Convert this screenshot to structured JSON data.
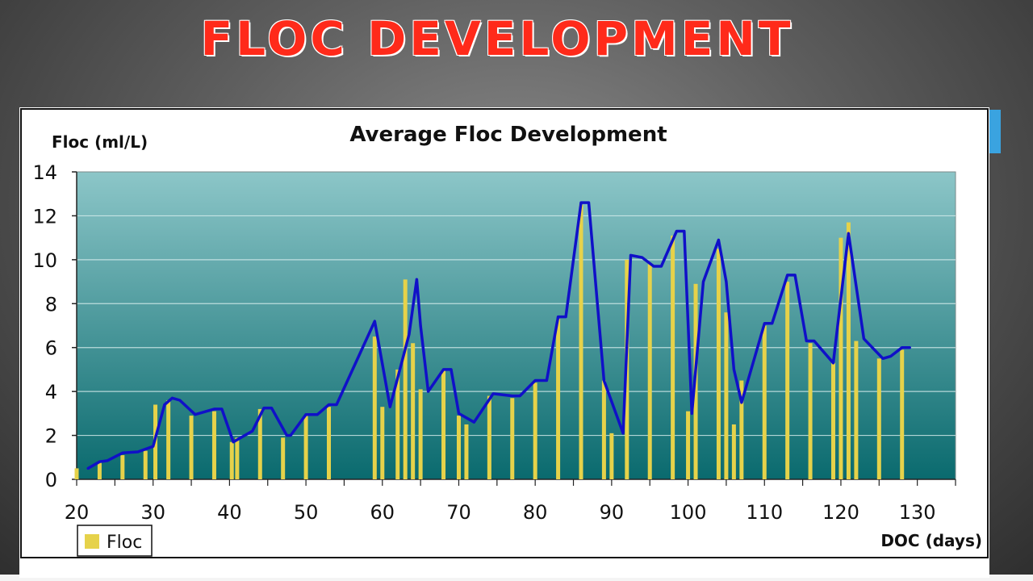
{
  "slide": {
    "title": "FLOC DEVELOPMENT"
  },
  "colors": {
    "line": "#1010c8",
    "bar": "#e6d24a",
    "plot_top": "#8cc6c8",
    "plot_bottom": "#0a6a6e",
    "title": "#ff2a1a"
  },
  "chart_data": {
    "type": "bar+line",
    "title": "Average Floc Development",
    "ylabel": "Floc (ml/L)",
    "xlabel": "DOC (days)",
    "legend": {
      "label": "Floc",
      "position": "bottom-left"
    },
    "xlim": [
      20,
      135
    ],
    "ylim": [
      0,
      14
    ],
    "xticks": [
      20,
      30,
      40,
      50,
      60,
      70,
      80,
      90,
      100,
      110,
      120,
      130
    ],
    "yticks": [
      0,
      2,
      4,
      6,
      8,
      10,
      12,
      14
    ],
    "grid": true,
    "bars": {
      "name": "Floc",
      "x": [
        20,
        23,
        26,
        29,
        30.3,
        32,
        35,
        38,
        40.3,
        41,
        44,
        47,
        50,
        53,
        59,
        60,
        62,
        63,
        64,
        65,
        68,
        70,
        71,
        74,
        77,
        80,
        83,
        86,
        89,
        90,
        92,
        95,
        98,
        100,
        101,
        104,
        105,
        106,
        107,
        110,
        113,
        116,
        119,
        120,
        121,
        122,
        125,
        128
      ],
      "values": [
        0.5,
        0.8,
        1.1,
        1.3,
        3.4,
        3.6,
        2.9,
        3.1,
        1.7,
        1.9,
        3.2,
        1.9,
        2.9,
        3.3,
        6.5,
        3.3,
        5.0,
        9.1,
        6.2,
        4.1,
        5.0,
        2.9,
        2.5,
        3.8,
        3.7,
        4.4,
        7.3,
        12.5,
        4.5,
        2.1,
        10.0,
        9.8,
        11.1,
        3.1,
        8.9,
        10.5,
        7.6,
        2.5,
        4.5,
        7.0,
        9.0,
        6.2,
        5.3,
        11.0,
        11.7,
        6.3,
        5.5,
        5.9
      ]
    },
    "line": {
      "name": "Average",
      "x": [
        21.5,
        23,
        24,
        26,
        28,
        30,
        31.5,
        32.5,
        33.5,
        35.5,
        38,
        39,
        40.5,
        43,
        44.5,
        45.5,
        47.5,
        48,
        50,
        51.5,
        53,
        54,
        59,
        61,
        63.5,
        64.5,
        65,
        66,
        68,
        69,
        70,
        72,
        74.5,
        77,
        78,
        80,
        81.5,
        83,
        84,
        86,
        87,
        89,
        91.5,
        92.5,
        94,
        95.5,
        96.5,
        98.5,
        99.5,
        100.5,
        102,
        104,
        105,
        106,
        107,
        110,
        111,
        113,
        114,
        115.5,
        116.5,
        119,
        121,
        123,
        125.5,
        126.5,
        128,
        129
      ],
      "values": [
        0.5,
        0.8,
        0.85,
        1.2,
        1.25,
        1.5,
        3.4,
        3.7,
        3.6,
        2.95,
        3.2,
        3.2,
        1.7,
        2.2,
        3.25,
        3.25,
        2.0,
        2.0,
        2.95,
        2.95,
        3.4,
        3.4,
        7.2,
        3.3,
        6.6,
        9.1,
        7.0,
        4.0,
        5.0,
        5.0,
        3.0,
        2.6,
        3.9,
        3.8,
        3.8,
        4.5,
        4.5,
        7.4,
        7.4,
        12.6,
        12.6,
        4.5,
        2.1,
        10.2,
        10.1,
        9.7,
        9.7,
        11.3,
        11.3,
        3.0,
        9.0,
        10.9,
        9.0,
        5.0,
        3.5,
        7.1,
        7.1,
        9.3,
        9.3,
        6.3,
        6.3,
        5.3,
        11.2,
        6.4,
        5.5,
        5.6,
        6.0,
        6.0
      ]
    }
  }
}
